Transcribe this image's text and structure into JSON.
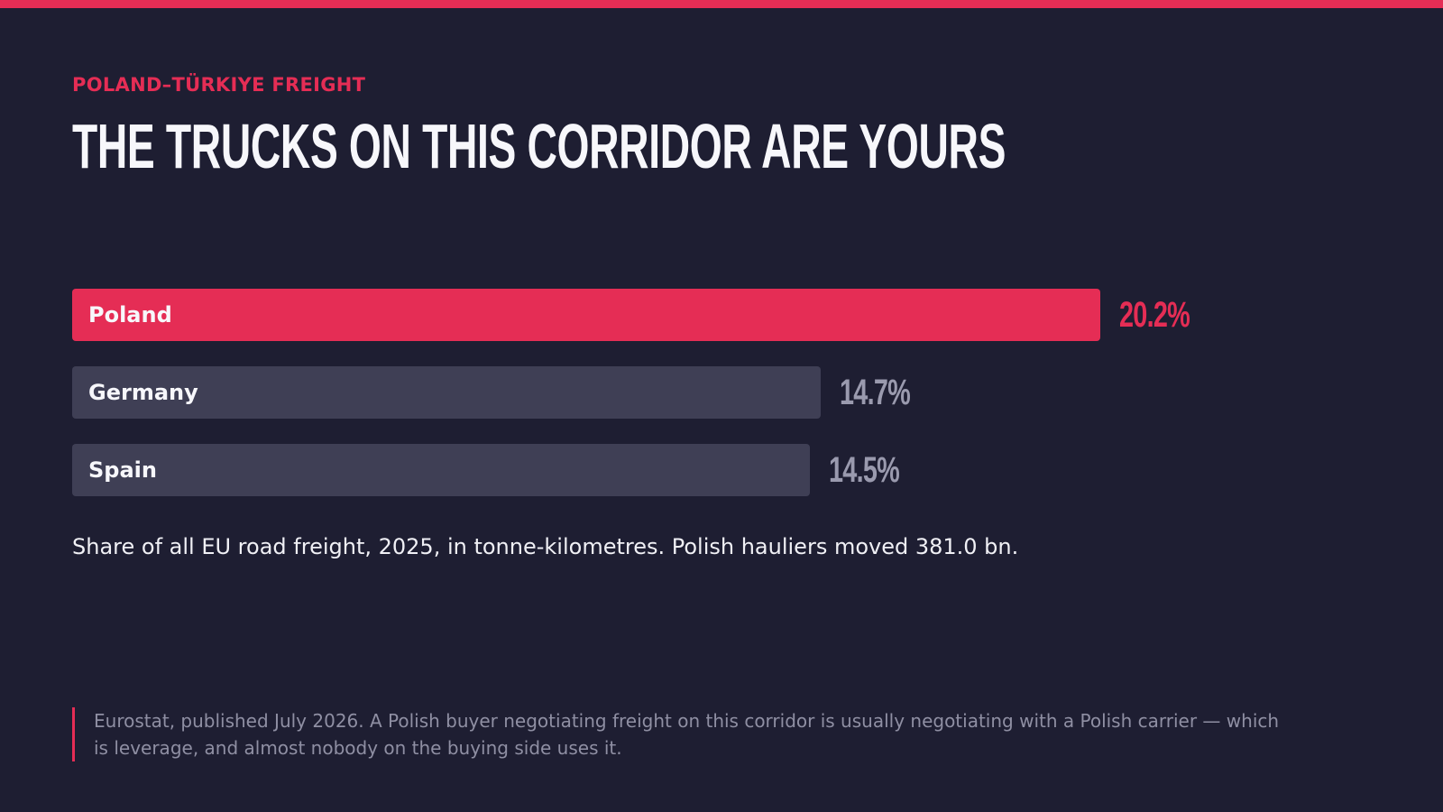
{
  "eyebrow": "POLAND–TÜRKIYE FREIGHT",
  "chart_data": {
    "type": "bar",
    "orientation": "horizontal",
    "title": "THE TRUCKS ON THIS CORRIDOR ARE YOURS",
    "categories": [
      "Poland",
      "Germany",
      "Spain"
    ],
    "values": [
      20.2,
      14.7,
      14.5
    ],
    "value_labels": [
      "20.2%",
      "14.7%",
      "14.5%"
    ],
    "colors": [
      "#e52d55",
      "#3f3f55",
      "#3f3f55"
    ],
    "value_label_colors": [
      "#e52d55",
      "#9a9aae",
      "#9a9aae"
    ],
    "caption": "Share of all EU road freight, 2025, in tonne-kilometres. Polish hauliers moved 381.0 bn."
  },
  "footnote": "Eurostat, published July 2026. A Polish buyer negotiating freight on this corridor is usually negotiating with a Polish carrier — which is leverage, and almost nobody on the buying side uses it."
}
